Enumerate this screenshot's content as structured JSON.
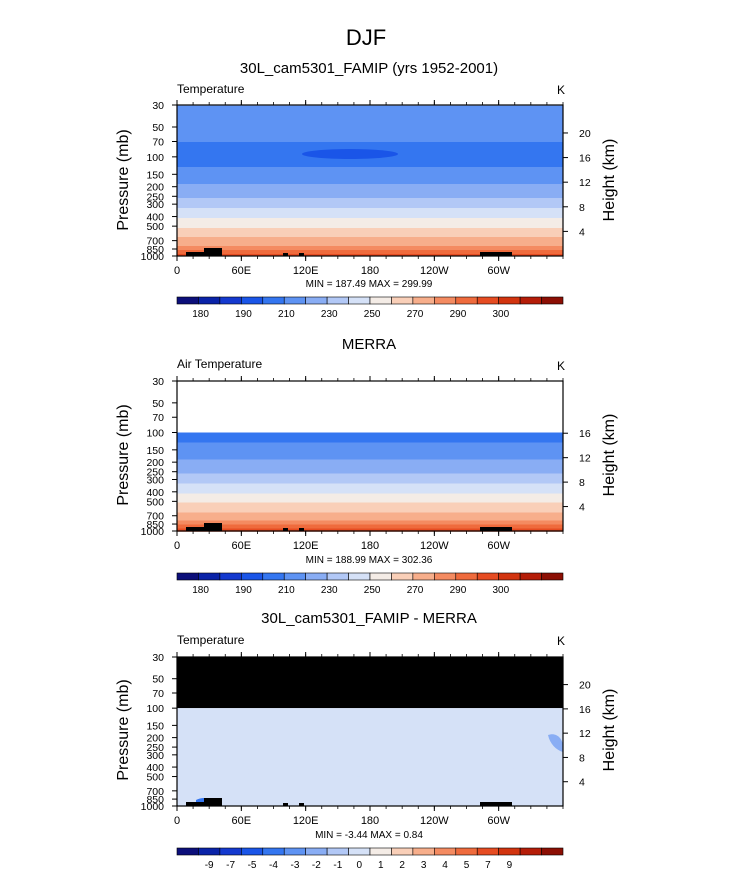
{
  "figure": {
    "title": "DJF"
  },
  "palettes": {
    "abs": [
      "#0c0f7a",
      "#0a23a8",
      "#1439cf",
      "#1a55e8",
      "#3476f0",
      "#5e93f3",
      "#89adf4",
      "#b2c8f6",
      "#d5e1f7",
      "#f4ece6",
      "#f9cfb8",
      "#f7ae8b",
      "#f48b61",
      "#ef6b3d",
      "#e64c22",
      "#d2340f",
      "#b51d08",
      "#8c0f04"
    ],
    "diff": [
      "#0c0f7a",
      "#0a23a8",
      "#1439cf",
      "#1a55e8",
      "#3476f0",
      "#5e93f3",
      "#89adf4",
      "#b2c8f6",
      "#d5e1f7",
      "#f4ece6",
      "#f9cfb8",
      "#f7ae8b",
      "#f48b61",
      "#ef6b3d",
      "#e64c22",
      "#d2340f",
      "#b51d08",
      "#8c0f04"
    ]
  },
  "chart_data": [
    {
      "type": "heatmap",
      "title": "30L_cam5301_FAMIP (yrs 1952-2001)",
      "left_label": "Temperature",
      "right_label": "K",
      "ylabel": "Pressure (mb)",
      "y2label": "Height (km)",
      "x_ticks": [
        "0",
        "60E",
        "120E",
        "180",
        "120W",
        "60W"
      ],
      "y_ticks": [
        "30",
        "50",
        "70",
        "100",
        "150",
        "200",
        "250",
        "300",
        "400",
        "500",
        "700",
        "850",
        "1000"
      ],
      "y2_ticks": [
        "20",
        "16",
        "12",
        "8",
        "4"
      ],
      "minmax": "MIN = 187.49  MAX = 299.99",
      "colorbar_labels": [
        "180",
        "190",
        "210",
        "230",
        "250",
        "270",
        "290",
        "300"
      ],
      "profile": [
        {
          "p": 30,
          "v": 220
        },
        {
          "p": 50,
          "v": 214
        },
        {
          "p": 70,
          "v": 210
        },
        {
          "p": 100,
          "v": 205
        },
        {
          "p": 150,
          "v": 214
        },
        {
          "p": 200,
          "v": 222
        },
        {
          "p": 250,
          "v": 229
        },
        {
          "p": 300,
          "v": 236
        },
        {
          "p": 400,
          "v": 249
        },
        {
          "p": 500,
          "v": 259
        },
        {
          "p": 700,
          "v": 274
        },
        {
          "p": 850,
          "v": 284
        },
        {
          "p": 1000,
          "v": 293
        }
      ],
      "levels": [
        175,
        180,
        185,
        190,
        200,
        210,
        220,
        230,
        240,
        250,
        260,
        270,
        280,
        285,
        290,
        295,
        300,
        305
      ]
    },
    {
      "type": "heatmap",
      "title": "MERRA",
      "left_label": "Air Temperature",
      "right_label": "K",
      "ylabel": "Pressure (mb)",
      "y2label": "Height (km)",
      "x_ticks": [
        "0",
        "60E",
        "120E",
        "180",
        "120W",
        "60W"
      ],
      "y_ticks": [
        "30",
        "50",
        "70",
        "100",
        "150",
        "200",
        "250",
        "300",
        "400",
        "500",
        "700",
        "850",
        "1000"
      ],
      "y2_ticks": [
        "16",
        "12",
        "8",
        "4"
      ],
      "minmax": "MIN = 188.99  MAX = 302.36",
      "colorbar_labels": [
        "180",
        "190",
        "210",
        "230",
        "250",
        "270",
        "290",
        "300"
      ],
      "profile": [
        {
          "p": 100,
          "v": 205
        },
        {
          "p": 150,
          "v": 214
        },
        {
          "p": 200,
          "v": 222
        },
        {
          "p": 250,
          "v": 229
        },
        {
          "p": 300,
          "v": 236
        },
        {
          "p": 400,
          "v": 249
        },
        {
          "p": 500,
          "v": 259
        },
        {
          "p": 700,
          "v": 274
        },
        {
          "p": 850,
          "v": 285
        },
        {
          "p": 1000,
          "v": 294
        }
      ],
      "levels": [
        175,
        180,
        185,
        190,
        200,
        210,
        220,
        230,
        240,
        250,
        260,
        270,
        280,
        285,
        290,
        295,
        300,
        305
      ]
    },
    {
      "type": "heatmap",
      "title": "30L_cam5301_FAMIP - MERRA",
      "left_label": "Temperature",
      "right_label": "K",
      "ylabel": "Pressure (mb)",
      "y2label": "Height (km)",
      "x_ticks": [
        "0",
        "60E",
        "120E",
        "180",
        "120W",
        "60W"
      ],
      "y_ticks": [
        "30",
        "50",
        "70",
        "100",
        "150",
        "200",
        "250",
        "300",
        "400",
        "500",
        "700",
        "850",
        "1000"
      ],
      "y2_ticks": [
        "20",
        "16",
        "12",
        "8",
        "4"
      ],
      "minmax": "MIN = -3.44  MAX =  0.84",
      "colorbar_labels": [
        "-9",
        "-7",
        "-5",
        "-4",
        "-3",
        "-2",
        "-1",
        "0",
        "1",
        "2",
        "3",
        "4",
        "5",
        "7",
        "9"
      ],
      "missing_above_mb": 100,
      "dominant_value": -1.5,
      "levels": [
        -10,
        -9,
        -8,
        -7,
        -6,
        -5,
        -4,
        -3,
        -2,
        -1,
        0,
        1,
        2,
        3,
        4,
        5,
        6,
        7
      ]
    }
  ]
}
